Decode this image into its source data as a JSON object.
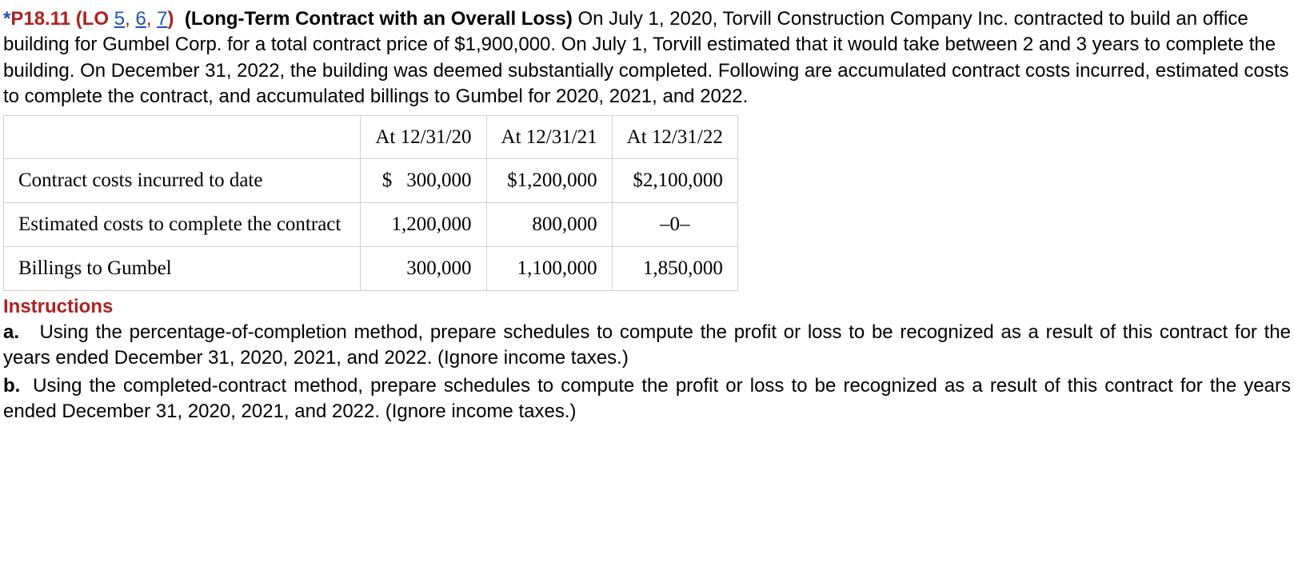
{
  "header": {
    "star": "*",
    "problem_number": "P18.11",
    "lo_label": "(LO ",
    "lo_links": [
      "5",
      "6",
      "7"
    ],
    "lo_close": ")",
    "title": "(Long-Term Contract with an Overall Loss)",
    "intro_text": " On July 1, 2020, Torvill Construction Company Inc. contracted to build an office building for Gumbel Corp. for a total contract price of $1,900,000. On July 1, Torvill estimated that it would take between 2 and 3 years to complete the building. On December 31, 2022, the building was deemed substantially completed. Following are accumulated contract costs incurred, estimated costs to complete the contract, and accumulated billings to Gumbel for 2020, 2021, and 2022."
  },
  "table": {
    "headers": [
      "At 12/31/20",
      "At 12/31/21",
      "At 12/31/22"
    ],
    "rows": [
      {
        "label": "Contract costs incurred to date",
        "cells": [
          "300,000",
          "$1,200,000",
          "$2,100,000"
        ],
        "first_has_dollar": true
      },
      {
        "label": "Estimated costs to complete the contract",
        "cells": [
          "1,200,000",
          "800,000",
          "–0–"
        ],
        "first_has_dollar": false,
        "last_center": true
      },
      {
        "label": "Billings to Gumbel",
        "cells": [
          "300,000",
          "1,100,000",
          "1,850,000"
        ],
        "first_has_dollar": false
      }
    ]
  },
  "instructions": {
    "label": "Instructions",
    "items": [
      {
        "letter": "a.",
        "text": "Using the percentage-of-completion method, prepare schedules to compute the profit or loss to be recognized as a result of this contract for the years ended December 31, 2020, 2021, and 2022. (Ignore income taxes.)"
      },
      {
        "letter": "b.",
        "text": "Using the completed-contract method, prepare schedules to compute the profit or loss to be recognized as a result of this contract for the years ended December 31, 2020, 2021, and 2022. (Ignore income taxes.)"
      }
    ]
  }
}
